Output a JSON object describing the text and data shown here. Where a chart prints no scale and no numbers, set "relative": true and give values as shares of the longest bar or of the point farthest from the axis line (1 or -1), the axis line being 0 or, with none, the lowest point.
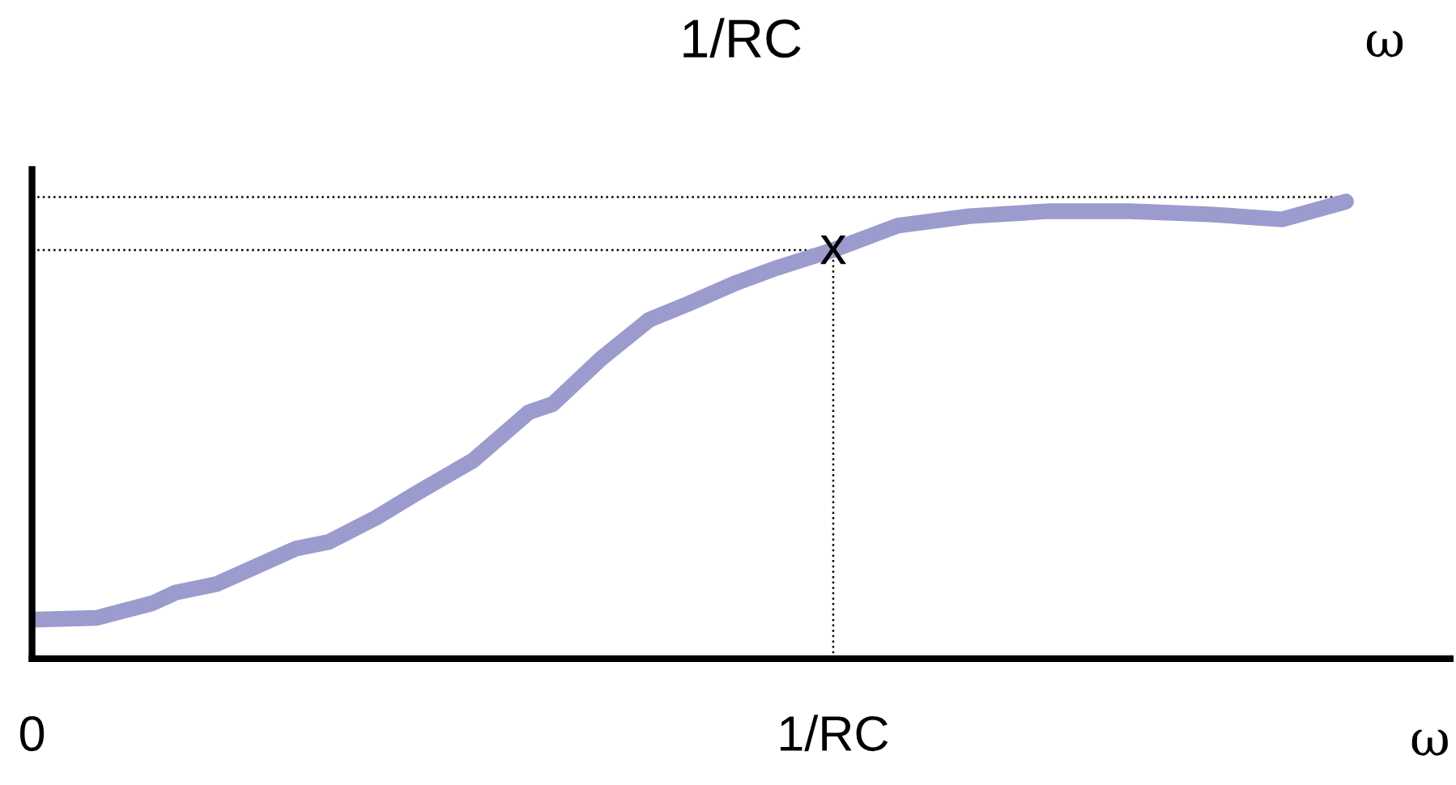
{
  "chart_data": {
    "type": "line",
    "title": "1/RC",
    "xlabel": "ω",
    "relative": true,
    "tick_labels": "x",
    "annotations": [
      "ω",
      {
        "text": "x",
        "x": 1,
        "y": 0.894
      }
    ],
    "x": [
      0,
      0.08,
      0.15,
      0.18,
      0.23,
      0.28,
      0.33,
      0.37,
      0.43,
      0.48,
      0.55,
      0.62,
      0.65,
      0.71,
      0.77,
      0.82,
      0.88,
      0.93,
      1,
      1.08,
      1.17,
      1.27,
      1.37,
      1.47,
      1.56,
      1.64
    ],
    "series": [
      {
        "color": "#9b9bce",
        "values": [
          0.085,
          0.089,
          0.121,
          0.145,
          0.163,
          0.202,
          0.241,
          0.255,
          0.309,
          0.362,
          0.433,
          0.539,
          0.557,
          0.656,
          0.741,
          0.777,
          0.823,
          0.855,
          0.894,
          0.947,
          0.968,
          0.979,
          0.979,
          0.972,
          0.961,
          1
        ]
      }
    ],
    "xlim": [
      0,
      1.77
    ],
    "xticks": [
      {
        "value": 0,
        "label": "0"
      },
      {
        "value": 1,
        "label": "1/RC"
      }
    ],
    "ref_lines": [
      {
        "axis": "x",
        "value": 1,
        "line_style": "dotted",
        "color": "#000000"
      },
      {
        "axis": "y",
        "value": 0.894,
        "line_style": "dotted",
        "color": "#000000"
      },
      {
        "axis": "y",
        "value": 1.01,
        "line_style": "dotted",
        "color": "#000000"
      }
    ],
    "grid": false,
    "legend": false
  }
}
